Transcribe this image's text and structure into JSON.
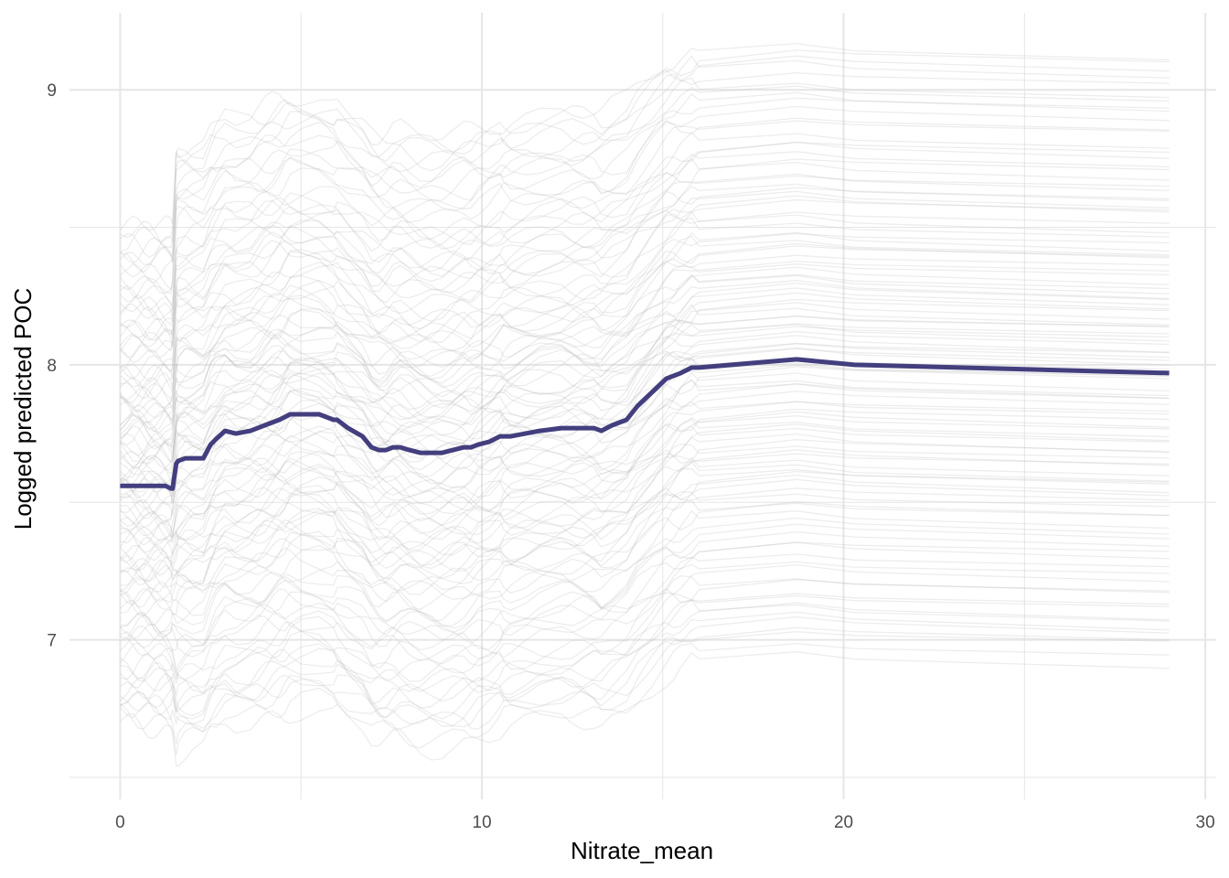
{
  "chart_data": {
    "type": "line",
    "title": "",
    "xlabel": "Nitrate_mean",
    "ylabel": "Logged predicted POC",
    "xlim": [
      -1.4,
      30.3
    ],
    "ylim": [
      6.42,
      9.28
    ],
    "x_ticks": [
      0,
      10,
      20,
      30
    ],
    "x_tick_labels": [
      "0",
      "10",
      "20",
      "30"
    ],
    "y_ticks": [
      7,
      8,
      9
    ],
    "y_tick_labels": [
      "7",
      "8",
      "9"
    ],
    "x_minor_gridlines": [
      5,
      15,
      25
    ],
    "y_minor_gridlines": [
      7.5,
      8.5
    ],
    "grid": true,
    "legend": "none",
    "colors": {
      "average_line": "#433e7e",
      "individual_lines": "#bdbdbd",
      "gridline": "#e6e6e6"
    },
    "individual_curves": {
      "description_count": 110,
      "offsets_from_average": [
        -1.07,
        -1.03,
        -0.98,
        -0.93,
        -0.89,
        -0.84,
        -0.8,
        -0.75,
        -0.7,
        -0.66,
        -0.61,
        -0.56,
        -0.52,
        -0.47,
        -0.43,
        -0.38,
        -0.33,
        -0.29,
        -0.24,
        -0.2,
        -0.15,
        -0.1,
        -0.06,
        -0.01,
        0.04,
        0.08,
        0.13,
        0.17,
        0.22,
        0.27,
        0.31,
        0.36,
        0.41,
        0.45,
        0.5,
        0.54,
        0.59,
        0.64,
        0.68,
        0.73,
        0.78,
        0.82,
        0.87,
        0.91,
        0.96,
        1.01,
        1.05,
        1.1,
        1.15,
        -0.01,
        -0.18,
        0.23,
        -0.37,
        0.35,
        0.05,
        -0.28,
        0.44,
        0.14,
        -0.63,
        0.61,
        -0.85,
        0.79,
        -0.45,
        0.18,
        0.01,
        -0.12,
        0.28,
        -0.22,
        0.39,
        -0.52,
        0.67,
        -0.73,
        0.95,
        -0.95,
        1.08,
        -0.31,
        0.1,
        0.33,
        -0.07,
        0.47,
        -0.41,
        0.2,
        -0.15,
        0.58,
        -0.59,
        0.71,
        -0.79,
        0.88,
        -0.89,
        1.0,
        0.07,
        -0.03,
        0.25,
        -0.25,
        0.12,
        -0.34,
        0.52,
        -0.48,
        0.63,
        -0.67,
        0.76,
        -0.98,
        1.12,
        0.03,
        -0.09,
        0.16,
        -0.2,
        0.3,
        -0.39,
        0.42
      ]
    },
    "series": [
      {
        "name": "",
        "x": [
          0,
          0.2,
          0.35,
          0.5,
          0.65,
          0.8,
          0.95,
          1.1,
          1.25,
          1.4,
          1.45,
          1.55,
          1.6,
          1.8,
          2.0,
          2.3,
          2.5,
          2.65,
          2.9,
          3.2,
          3.6,
          3.8,
          4.0,
          4.2,
          4.4,
          4.55,
          4.7,
          5.0,
          5.5,
          5.9,
          6.0,
          6.3,
          6.7,
          6.95,
          7.15,
          7.35,
          7.55,
          7.75,
          8.0,
          8.3,
          8.6,
          8.9,
          9.2,
          9.5,
          9.7,
          9.9,
          10.2,
          10.5,
          10.6,
          10.8,
          11.2,
          11.6,
          12.2,
          12.5,
          12.8,
          13.1,
          13.3,
          13.6,
          14.0,
          14.3,
          14.7,
          15.1,
          15.3,
          15.5,
          15.8,
          16.0,
          18.7,
          20.3,
          29.0
        ],
        "values": [
          7.56,
          7.56,
          7.56,
          7.56,
          7.56,
          7.56,
          7.56,
          7.56,
          7.56,
          7.55,
          7.55,
          7.64,
          7.65,
          7.66,
          7.66,
          7.66,
          7.71,
          7.73,
          7.76,
          7.75,
          7.76,
          7.77,
          7.78,
          7.79,
          7.8,
          7.81,
          7.82,
          7.82,
          7.82,
          7.8,
          7.8,
          7.77,
          7.74,
          7.7,
          7.69,
          7.69,
          7.7,
          7.7,
          7.69,
          7.68,
          7.68,
          7.68,
          7.69,
          7.7,
          7.7,
          7.71,
          7.72,
          7.74,
          7.74,
          7.74,
          7.75,
          7.76,
          7.77,
          7.77,
          7.77,
          7.77,
          7.76,
          7.78,
          7.8,
          7.85,
          7.9,
          7.95,
          7.96,
          7.97,
          7.99,
          7.99,
          8.02,
          8.0,
          7.97
        ]
      }
    ]
  }
}
